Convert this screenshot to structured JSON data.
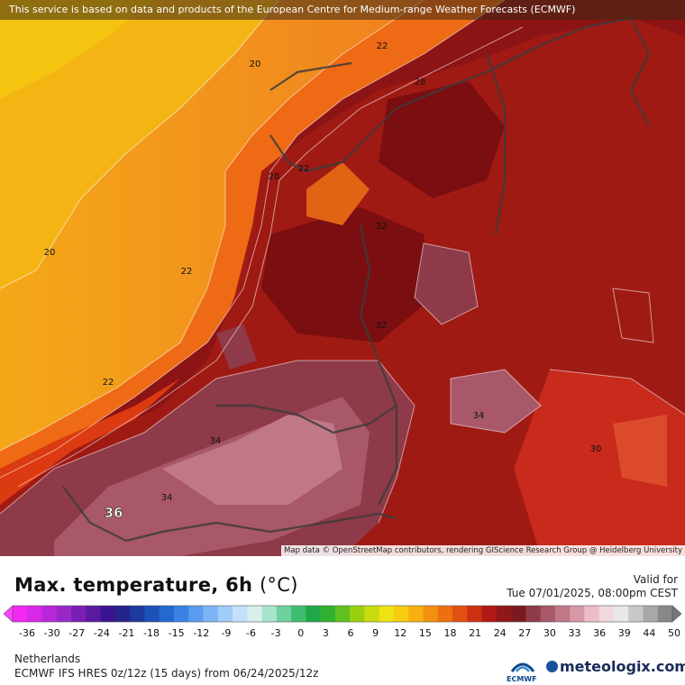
{
  "notice": "This service is based on data and products of the European Centre for Medium-range Weather Forecasts (ECMWF)",
  "attribution": "Map data © OpenStreetMap contributors, rendering GIScience Research Group @ Heidelberg University",
  "contour_labels": [
    "20",
    "22",
    "28",
    "22",
    "28",
    "20",
    "22",
    "32",
    "22",
    "32",
    "34",
    "34",
    "30",
    "34",
    "36"
  ],
  "panel": {
    "title": "Max. temperature, 6h",
    "unit": "(°C)",
    "valid_label": "Valid for",
    "valid_time": "Tue 07/01/2025, 08:00pm CEST",
    "region": "Netherlands",
    "model": "ECMWF IFS HRES 0z/12z (15 days) from  06/24/2025/12z",
    "ecmwf_logo": "ECMWF",
    "brand": "meteologix.com"
  },
  "scale": {
    "ticks": [
      "-36",
      "-30",
      "-27",
      "-24",
      "-21",
      "-18",
      "-15",
      "-12",
      "-9",
      "-6",
      "-3",
      "0",
      "3",
      "6",
      "9",
      "12",
      "15",
      "18",
      "21",
      "24",
      "27",
      "30",
      "33",
      "36",
      "39",
      "44",
      "50"
    ],
    "colors": [
      "#f028f0",
      "#d828e8",
      "#b828d8",
      "#9a28c8",
      "#7a1eb4",
      "#5a1aa0",
      "#3a1490",
      "#26248a",
      "#1c3aa0",
      "#1c52b8",
      "#2468d0",
      "#3a82e4",
      "#5a9cf0",
      "#7cb4f6",
      "#a0ccfa",
      "#c4e0fc",
      "#d8f0ec",
      "#a8e4cc",
      "#70d0a0",
      "#40bc70",
      "#20a848",
      "#30b030",
      "#60c020",
      "#98d010",
      "#c8dc10",
      "#f0e410",
      "#f8cc10",
      "#f8b010",
      "#f49010",
      "#ec7010",
      "#e05010",
      "#cc3010",
      "#b01a14",
      "#901818",
      "#7a1a20",
      "#8e3a48",
      "#a85868",
      "#c07888",
      "#d898a8",
      "#ecbcc8",
      "#f0d8dc",
      "#e8e8e8",
      "#c8c8c8",
      "#a8a8a8",
      "#888888"
    ]
  }
}
